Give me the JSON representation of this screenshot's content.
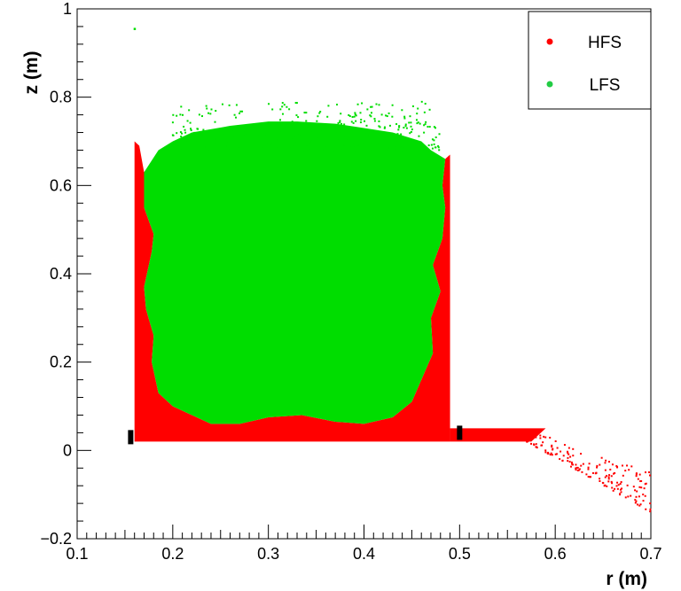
{
  "chart_data": {
    "type": "scatter",
    "title": "",
    "xlabel": "r (m)",
    "ylabel": "z (m)",
    "xlim": [
      0.1,
      0.7
    ],
    "ylim": [
      -0.2,
      1.0
    ],
    "x_ticks": [
      "0.1",
      "0.2",
      "0.3",
      "0.4",
      "0.5",
      "0.6",
      "0.7"
    ],
    "y_ticks": [
      "−0.2",
      "0",
      "0.2",
      "0.4",
      "0.6",
      "0.8",
      "1"
    ],
    "grid": false,
    "legend_position": "top-right",
    "series": [
      {
        "name": "HFS",
        "color": "#ff0000",
        "regions": [
          {
            "kind": "polygon",
            "points": [
              [
                0.16,
                0.02
              ],
              [
                0.49,
                0.02
              ],
              [
                0.49,
                0.67
              ],
              [
                0.485,
                0.66
              ],
              [
                0.482,
                0.6
              ],
              [
                0.485,
                0.55
              ],
              [
                0.482,
                0.48
              ],
              [
                0.472,
                0.42
              ],
              [
                0.48,
                0.36
              ],
              [
                0.47,
                0.3
              ],
              [
                0.472,
                0.22
              ],
              [
                0.462,
                0.17
              ],
              [
                0.45,
                0.11
              ],
              [
                0.43,
                0.075
              ],
              [
                0.4,
                0.06
              ],
              [
                0.37,
                0.065
              ],
              [
                0.335,
                0.08
              ],
              [
                0.3,
                0.075
              ],
              [
                0.27,
                0.06
              ],
              [
                0.24,
                0.06
              ],
              [
                0.22,
                0.08
              ],
              [
                0.2,
                0.1
              ],
              [
                0.185,
                0.13
              ],
              [
                0.178,
                0.2
              ],
              [
                0.18,
                0.26
              ],
              [
                0.172,
                0.32
              ],
              [
                0.17,
                0.37
              ],
              [
                0.178,
                0.45
              ],
              [
                0.18,
                0.49
              ],
              [
                0.17,
                0.55
              ],
              [
                0.17,
                0.63
              ],
              [
                0.165,
                0.69
              ],
              [
                0.16,
                0.7
              ]
            ]
          },
          {
            "kind": "polygon",
            "points": [
              [
                0.49,
                0.02
              ],
              [
                0.575,
                0.02
              ],
              [
                0.59,
                0.05
              ],
              [
                0.49,
                0.05
              ]
            ]
          },
          {
            "kind": "scatter_cloud",
            "x_range": [
              0.57,
              0.7
            ],
            "z_top": [
              0.05,
              -0.05
            ],
            "z_bottom": [
              0.02,
              -0.14
            ],
            "count": 170
          }
        ]
      },
      {
        "name": "LFS",
        "color": "#00dd00",
        "regions": [
          {
            "kind": "polygon",
            "points": [
              [
                0.17,
                0.63
              ],
              [
                0.17,
                0.55
              ],
              [
                0.18,
                0.49
              ],
              [
                0.178,
                0.45
              ],
              [
                0.17,
                0.37
              ],
              [
                0.172,
                0.32
              ],
              [
                0.18,
                0.26
              ],
              [
                0.178,
                0.2
              ],
              [
                0.185,
                0.13
              ],
              [
                0.2,
                0.1
              ],
              [
                0.22,
                0.08
              ],
              [
                0.24,
                0.06
              ],
              [
                0.27,
                0.06
              ],
              [
                0.3,
                0.075
              ],
              [
                0.335,
                0.08
              ],
              [
                0.37,
                0.065
              ],
              [
                0.4,
                0.06
              ],
              [
                0.43,
                0.075
              ],
              [
                0.45,
                0.11
              ],
              [
                0.462,
                0.17
              ],
              [
                0.472,
                0.22
              ],
              [
                0.47,
                0.3
              ],
              [
                0.48,
                0.36
              ],
              [
                0.472,
                0.42
              ],
              [
                0.482,
                0.48
              ],
              [
                0.485,
                0.55
              ],
              [
                0.482,
                0.6
              ],
              [
                0.485,
                0.66
              ],
              [
                0.47,
                0.68
              ],
              [
                0.46,
                0.7
              ],
              [
                0.43,
                0.72
              ],
              [
                0.4,
                0.73
              ],
              [
                0.37,
                0.74
              ],
              [
                0.33,
                0.745
              ],
              [
                0.3,
                0.745
              ],
              [
                0.26,
                0.735
              ],
              [
                0.22,
                0.72
              ],
              [
                0.2,
                0.7
              ],
              [
                0.185,
                0.68
              ]
            ]
          },
          {
            "kind": "scatter_cloud",
            "x_range": [
              0.2,
              0.48
            ],
            "z_top": [
              0.79,
              0.79
            ],
            "z_bottom": [
              0.68,
              0.68
            ],
            "count": 420
          }
        ]
      }
    ],
    "outliers": [
      {
        "series": "LFS",
        "x": 0.16,
        "y": 0.955
      }
    ],
    "markers": [
      {
        "x": 0.156,
        "y": 0.03,
        "color": "#000000"
      },
      {
        "x": 0.5,
        "y": 0.04,
        "color": "#000000"
      }
    ]
  }
}
